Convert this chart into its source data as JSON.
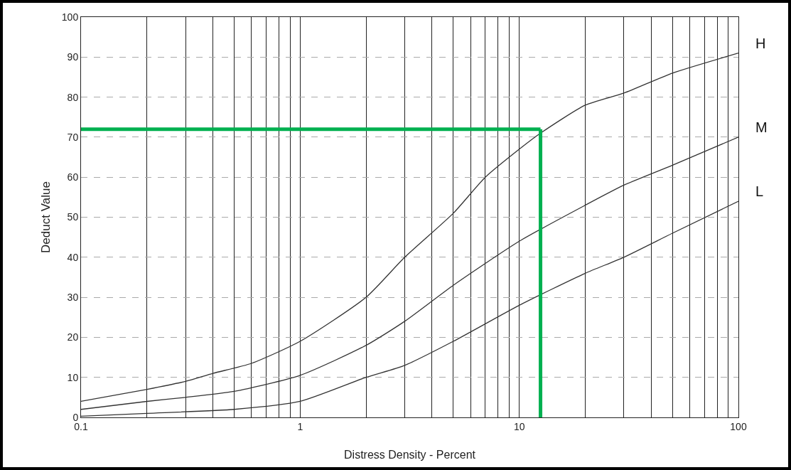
{
  "chart_data": {
    "type": "line",
    "xlabel": "Distress Density - Percent",
    "ylabel": "Deduct Value",
    "log": "x",
    "xlim": [
      0.1,
      100
    ],
    "ylim": [
      0,
      100
    ],
    "xticks": [
      0.1,
      {
        "value": 0.2,
        "label": null
      },
      {
        "value": 0.3,
        "label": null
      },
      {
        "value": 0.4,
        "label": null
      },
      {
        "value": 0.5,
        "label": null
      },
      {
        "value": 0.6,
        "label": null
      },
      {
        "value": 0.7,
        "label": null
      },
      {
        "value": 0.8,
        "label": null
      },
      {
        "value": 0.9,
        "label": null
      },
      1,
      {
        "value": 2,
        "label": null
      },
      {
        "value": 3,
        "label": null
      },
      {
        "value": 4,
        "label": null
      },
      {
        "value": 5,
        "label": null
      },
      {
        "value": 6,
        "label": null
      },
      {
        "value": 7,
        "label": null
      },
      {
        "value": 8,
        "label": null
      },
      {
        "value": 9,
        "label": null
      },
      10,
      {
        "value": 20,
        "label": null
      },
      {
        "value": 30,
        "label": null
      },
      {
        "value": 40,
        "label": null
      },
      {
        "value": 50,
        "label": null
      },
      {
        "value": 60,
        "label": null
      },
      {
        "value": 70,
        "label": null
      },
      {
        "value": 80,
        "label": null
      },
      {
        "value": 90,
        "label": null
      },
      100
    ],
    "yticks": [
      0,
      10,
      20,
      30,
      40,
      50,
      60,
      70,
      80,
      90,
      100
    ],
    "grid": true,
    "legend": false,
    "marker": "none",
    "line_style": "solid",
    "series": [
      {
        "name": "H",
        "color": "#333333",
        "x": [
          0.1,
          0.2,
          0.3,
          0.4,
          0.6,
          1,
          2,
          3,
          5,
          7,
          10,
          12.5,
          20,
          30,
          50,
          100
        ],
        "values": [
          4,
          7,
          9,
          11,
          13.5,
          19,
          30,
          40,
          51,
          60,
          67,
          71,
          78,
          81,
          86,
          91
        ]
      },
      {
        "name": "M",
        "color": "#333333",
        "x": [
          0.1,
          0.2,
          0.3,
          0.5,
          1,
          2,
          3,
          5,
          10,
          20,
          30,
          50,
          100
        ],
        "values": [
          2,
          4,
          5,
          6.5,
          10.5,
          18,
          24,
          33,
          44,
          53,
          58,
          63,
          70
        ]
      },
      {
        "name": "L",
        "color": "#333333",
        "x": [
          0.1,
          0.2,
          0.5,
          1,
          2,
          3,
          5,
          10,
          20,
          30,
          50,
          100
        ],
        "values": [
          0.3,
          1,
          2,
          4,
          10,
          13,
          19,
          28,
          36,
          40,
          46,
          54
        ]
      }
    ],
    "ref_lines": [
      {
        "axis": "y",
        "value": 72,
        "color": "#00b050"
      },
      {
        "axis": "x",
        "value": 12.5,
        "color": "#00b050"
      }
    ]
  }
}
